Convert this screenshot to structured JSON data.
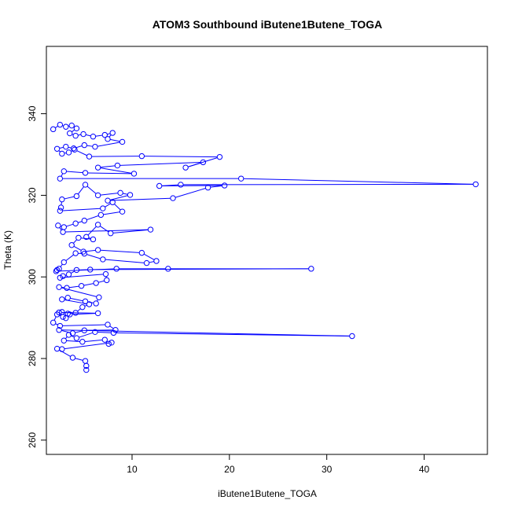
{
  "chart_data": {
    "type": "line",
    "title": "ATOM3 Southbound iButene1Butene_TOGA",
    "xlabel": "iButene1Butene_TOGA",
    "ylabel": "Theta (K)",
    "xlim": [
      1.2,
      46.5
    ],
    "ylim": [
      256.5,
      356.5
    ],
    "xticks": [
      10,
      20,
      30,
      40
    ],
    "yticks": [
      260,
      280,
      300,
      320,
      340
    ],
    "grid": false,
    "legend": "none",
    "series": [
      {
        "color": "#0000ff",
        "marker": "open-circle",
        "points": [
          [
            1.9,
            336.2
          ],
          [
            2.6,
            337.3
          ],
          [
            3.2,
            336.8
          ],
          [
            3.8,
            337.1
          ],
          [
            4.3,
            336.4
          ],
          [
            3.6,
            335.2
          ],
          [
            4.2,
            334.6
          ],
          [
            5.0,
            335.0
          ],
          [
            6.0,
            334.4
          ],
          [
            7.2,
            334.8
          ],
          [
            8.0,
            335.3
          ],
          [
            7.5,
            333.8
          ],
          [
            9.0,
            333.1
          ],
          [
            6.2,
            331.9
          ],
          [
            5.1,
            332.3
          ],
          [
            4.0,
            331.5
          ],
          [
            3.2,
            331.9
          ],
          [
            2.3,
            331.4
          ],
          [
            2.8,
            330.2
          ],
          [
            3.5,
            330.5
          ],
          [
            4.1,
            331.2
          ],
          [
            5.6,
            329.5
          ],
          [
            11.0,
            329.6
          ],
          [
            19.0,
            329.4
          ],
          [
            15.5,
            326.8
          ],
          [
            17.3,
            328.1
          ],
          [
            8.5,
            327.3
          ],
          [
            6.5,
            326.8
          ],
          [
            10.2,
            325.3
          ],
          [
            5.2,
            325.5
          ],
          [
            3.0,
            325.9
          ],
          [
            2.6,
            324.1
          ],
          [
            21.2,
            324.1
          ],
          [
            45.3,
            322.7
          ],
          [
            15.0,
            322.6
          ],
          [
            12.8,
            322.3
          ],
          [
            19.5,
            322.4
          ],
          [
            17.8,
            321.9
          ],
          [
            14.2,
            319.3
          ],
          [
            7.5,
            318.7
          ],
          [
            9.8,
            320.1
          ],
          [
            8.8,
            320.6
          ],
          [
            6.5,
            320.0
          ],
          [
            5.2,
            322.6
          ],
          [
            4.3,
            319.8
          ],
          [
            2.8,
            319.0
          ],
          [
            2.7,
            317.0
          ],
          [
            2.6,
            316.2
          ],
          [
            7.0,
            316.8
          ],
          [
            8.0,
            318.3
          ],
          [
            9.0,
            316.0
          ],
          [
            6.8,
            315.2
          ],
          [
            5.1,
            313.8
          ],
          [
            4.2,
            313.1
          ],
          [
            3.0,
            312.2
          ],
          [
            2.4,
            312.6
          ],
          [
            2.9,
            311.0
          ],
          [
            11.9,
            311.6
          ],
          [
            7.8,
            310.7
          ],
          [
            6.5,
            312.8
          ],
          [
            5.3,
            309.8
          ],
          [
            6.0,
            309.2
          ],
          [
            4.5,
            309.6
          ],
          [
            3.8,
            307.8
          ],
          [
            5.0,
            306.2
          ],
          [
            6.5,
            306.6
          ],
          [
            11.0,
            305.9
          ],
          [
            12.5,
            303.9
          ],
          [
            11.5,
            303.4
          ],
          [
            7.0,
            304.3
          ],
          [
            5.1,
            305.7
          ],
          [
            4.2,
            305.8
          ],
          [
            3.0,
            303.6
          ],
          [
            2.5,
            302.0
          ],
          [
            2.3,
            301.7
          ],
          [
            2.2,
            301.4
          ],
          [
            8.4,
            302.0
          ],
          [
            13.7,
            302.0
          ],
          [
            28.4,
            302.0
          ],
          [
            5.7,
            301.8
          ],
          [
            4.3,
            301.7
          ],
          [
            3.5,
            300.6
          ],
          [
            2.9,
            300.2
          ],
          [
            2.6,
            299.8
          ],
          [
            7.3,
            300.7
          ],
          [
            7.4,
            299.2
          ],
          [
            6.3,
            298.5
          ],
          [
            4.8,
            297.8
          ],
          [
            3.3,
            297.3
          ],
          [
            2.5,
            297.5
          ],
          [
            6.6,
            295.0
          ],
          [
            6.3,
            293.5
          ],
          [
            5.2,
            294.0
          ],
          [
            3.4,
            294.9
          ],
          [
            2.8,
            294.5
          ],
          [
            5.6,
            293.3
          ],
          [
            4.9,
            292.6
          ],
          [
            4.2,
            291.2
          ],
          [
            3.4,
            291.0
          ],
          [
            2.8,
            291.4
          ],
          [
            2.5,
            291.3
          ],
          [
            6.5,
            291.1
          ],
          [
            3.6,
            290.8
          ],
          [
            3.2,
            289.9
          ],
          [
            2.9,
            290.2
          ],
          [
            2.3,
            290.8
          ],
          [
            1.9,
            288.8
          ],
          [
            2.6,
            288.0
          ],
          [
            7.5,
            288.3
          ],
          [
            8.3,
            287.0
          ],
          [
            5.1,
            286.9
          ],
          [
            3.9,
            286.2
          ],
          [
            2.5,
            287.0
          ],
          [
            32.6,
            285.5
          ],
          [
            8.1,
            286.3
          ],
          [
            6.2,
            286.5
          ],
          [
            4.3,
            285.0
          ],
          [
            3.5,
            285.8
          ],
          [
            3.0,
            284.4
          ],
          [
            4.9,
            284.1
          ],
          [
            7.2,
            284.6
          ],
          [
            7.6,
            283.6
          ],
          [
            7.9,
            283.9
          ],
          [
            2.8,
            282.3
          ],
          [
            2.3,
            282.4
          ],
          [
            3.9,
            280.2
          ],
          [
            5.2,
            279.4
          ],
          [
            5.3,
            278.2
          ],
          [
            5.3,
            277.2
          ]
        ]
      }
    ]
  }
}
